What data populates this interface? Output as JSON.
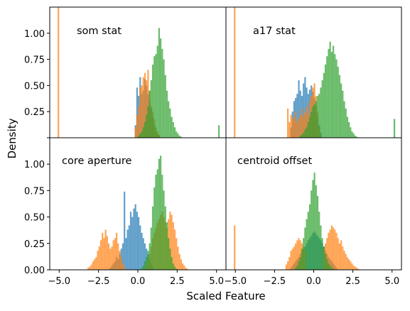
{
  "chart_data": {
    "type": "histogram",
    "xlabel": "Scaled Feature",
    "ylabel": "Density",
    "xlim": [
      -5.6,
      5.6
    ],
    "ylim": [
      0,
      1.25
    ],
    "xticks": [
      -5.0,
      -2.5,
      0.0,
      2.5,
      5.0
    ],
    "xtick_labels": [
      "−5.0",
      "−2.5",
      "0.0",
      "2.5",
      "5.0"
    ],
    "yticks": [
      0.0,
      0.25,
      0.5,
      0.75,
      1.0
    ],
    "ytick_labels": [
      "0.00",
      "0.25",
      "0.50",
      "0.75",
      "1.00"
    ],
    "colors": {
      "blue": "#1f77b4",
      "orange": "#ff7f0e",
      "green": "#2ca02c"
    },
    "bar_alpha": 0.7,
    "panels": [
      {
        "title": "som stat",
        "series": [
          {
            "color": "blue",
            "bin_width": 0.1,
            "x": [
              -0.2,
              -0.1,
              0.0,
              0.1,
              0.2,
              0.3,
              0.4,
              0.5,
              0.6,
              0.7,
              0.8,
              0.9,
              1.0,
              1.1,
              1.2,
              1.3
            ],
            "values": [
              0.12,
              0.48,
              0.4,
              0.58,
              0.42,
              0.45,
              0.56,
              0.5,
              0.42,
              0.35,
              0.28,
              0.2,
              0.12,
              0.07,
              0.04,
              0.02
            ]
          },
          {
            "color": "orange",
            "bin_width": 0.1,
            "x": [
              -5.1,
              -0.2,
              -0.1,
              0.0,
              0.1,
              0.2,
              0.3,
              0.4,
              0.5,
              0.6,
              0.7,
              0.8,
              0.9,
              1.0,
              1.1,
              1.2,
              1.3
            ],
            "values": [
              1.25,
              0.1,
              0.22,
              0.3,
              0.48,
              0.5,
              0.58,
              0.62,
              0.55,
              0.65,
              0.45,
              0.3,
              0.25,
              0.18,
              0.1,
              0.06,
              0.03
            ]
          },
          {
            "color": "green",
            "bin_width": 0.1,
            "x": [
              0.0,
              0.1,
              0.2,
              0.3,
              0.4,
              0.5,
              0.6,
              0.7,
              0.8,
              0.9,
              1.0,
              1.1,
              1.2,
              1.3,
              1.4,
              1.5,
              1.6,
              1.7,
              1.8,
              1.9,
              2.0,
              2.1,
              2.2,
              2.3,
              2.4,
              2.5,
              2.6,
              2.7,
              5.1
            ],
            "values": [
              0.02,
              0.04,
              0.06,
              0.1,
              0.15,
              0.22,
              0.3,
              0.45,
              0.55,
              0.7,
              0.78,
              0.8,
              0.88,
              1.05,
              0.95,
              0.85,
              0.75,
              0.6,
              0.45,
              0.35,
              0.28,
              0.2,
              0.15,
              0.1,
              0.06,
              0.04,
              0.02,
              0.01,
              0.12
            ]
          }
        ]
      },
      {
        "title": "a17 stat",
        "series": [
          {
            "color": "blue",
            "bin_width": 0.1,
            "x": [
              -1.5,
              -1.4,
              -1.3,
              -1.2,
              -1.1,
              -1.0,
              -0.9,
              -0.8,
              -0.7,
              -0.6,
              -0.5,
              -0.4,
              -0.3,
              -0.2,
              -0.1,
              0.0,
              0.1,
              0.2,
              0.3,
              0.4
            ],
            "values": [
              0.1,
              0.25,
              0.35,
              0.38,
              0.42,
              0.55,
              0.45,
              0.4,
              0.52,
              0.58,
              0.48,
              0.42,
              0.46,
              0.5,
              0.44,
              0.38,
              0.3,
              0.2,
              0.12,
              0.05
            ]
          },
          {
            "color": "orange",
            "bin_width": 0.1,
            "x": [
              -5.1,
              -1.7,
              -1.6,
              -1.5,
              -1.4,
              -1.3,
              -1.2,
              -1.1,
              -1.0,
              -0.9,
              -0.8,
              -0.7,
              -0.6,
              -0.5,
              -0.4,
              -0.3,
              -0.2,
              -0.1,
              0.0,
              0.1,
              0.2,
              0.3
            ],
            "values": [
              1.25,
              0.28,
              0.15,
              0.22,
              0.18,
              0.2,
              0.25,
              0.15,
              0.18,
              0.22,
              0.28,
              0.2,
              0.25,
              0.3,
              0.22,
              0.35,
              0.4,
              0.48,
              0.52,
              0.4,
              0.25,
              0.1
            ]
          },
          {
            "color": "green",
            "bin_width": 0.1,
            "x": [
              -0.9,
              -0.8,
              -0.7,
              -0.6,
              -0.5,
              -0.4,
              -0.3,
              -0.2,
              -0.1,
              0.0,
              0.1,
              0.2,
              0.3,
              0.4,
              0.5,
              0.6,
              0.7,
              0.8,
              0.9,
              1.0,
              1.1,
              1.2,
              1.3,
              1.4,
              1.5,
              1.6,
              1.7,
              1.8,
              1.9,
              2.0,
              2.1,
              2.2,
              2.3,
              2.4,
              2.5,
              2.6,
              2.7,
              5.1
            ],
            "values": [
              0.02,
              0.03,
              0.05,
              0.08,
              0.1,
              0.15,
              0.2,
              0.25,
              0.3,
              0.32,
              0.35,
              0.4,
              0.42,
              0.48,
              0.55,
              0.62,
              0.7,
              0.78,
              0.85,
              0.92,
              0.82,
              0.88,
              0.8,
              0.75,
              0.68,
              0.6,
              0.52,
              0.45,
              0.35,
              0.28,
              0.2,
              0.15,
              0.1,
              0.06,
              0.04,
              0.02,
              0.01,
              0.18
            ]
          }
        ]
      },
      {
        "title": "core aperture",
        "series": [
          {
            "color": "blue",
            "bin_width": 0.1,
            "x": [
              -1.8,
              -1.7,
              -1.6,
              -1.5,
              -1.4,
              -1.3,
              -1.2,
              -1.1,
              -1.0,
              -0.9,
              -0.8,
              -0.7,
              -0.6,
              -0.5,
              -0.4,
              -0.3,
              -0.2,
              -0.1,
              0.0,
              0.1,
              0.2,
              0.3,
              0.4,
              0.5,
              0.6,
              0.7,
              0.8,
              0.9
            ],
            "values": [
              0.02,
              0.04,
              0.06,
              0.08,
              0.12,
              0.1,
              0.15,
              0.2,
              0.25,
              0.74,
              0.3,
              0.38,
              0.42,
              0.55,
              0.5,
              0.58,
              0.62,
              0.55,
              0.5,
              0.42,
              0.35,
              0.3,
              0.25,
              0.2,
              0.15,
              0.1,
              0.06,
              0.03
            ]
          },
          {
            "color": "orange",
            "bin_width": 0.1,
            "x": [
              -3.2,
              -3.1,
              -3.0,
              -2.9,
              -2.8,
              -2.7,
              -2.6,
              -2.5,
              -2.4,
              -2.3,
              -2.2,
              -2.1,
              -2.0,
              -1.9,
              -1.8,
              -1.7,
              -1.6,
              -1.5,
              -1.4,
              -1.3,
              -1.2,
              -1.1,
              -1.0,
              -0.9,
              0.5,
              0.6,
              0.7,
              0.8,
              0.9,
              1.0,
              1.1,
              1.2,
              1.3,
              1.4,
              1.5,
              1.6,
              1.7,
              1.8,
              1.9,
              2.0,
              2.1,
              2.2,
              2.3,
              2.4,
              2.5,
              2.6,
              2.7,
              2.8,
              2.9,
              3.0,
              3.1
            ],
            "values": [
              0.02,
              0.03,
              0.05,
              0.08,
              0.1,
              0.12,
              0.18,
              0.22,
              0.28,
              0.35,
              0.3,
              0.38,
              0.32,
              0.25,
              0.2,
              0.22,
              0.28,
              0.3,
              0.35,
              0.25,
              0.18,
              0.12,
              0.06,
              0.03,
              0.05,
              0.1,
              0.15,
              0.22,
              0.3,
              0.35,
              0.4,
              0.45,
              0.48,
              0.52,
              0.55,
              0.5,
              0.45,
              0.4,
              0.48,
              0.55,
              0.52,
              0.45,
              0.38,
              0.3,
              0.22,
              0.15,
              0.1,
              0.06,
              0.04,
              0.02,
              0.01
            ]
          },
          {
            "color": "green",
            "bin_width": 0.1,
            "x": [
              0.2,
              0.3,
              0.4,
              0.5,
              0.6,
              0.7,
              0.8,
              0.9,
              1.0,
              1.1,
              1.2,
              1.3,
              1.4,
              1.5,
              1.6,
              1.7,
              1.8,
              1.9,
              2.0,
              2.1,
              2.2,
              2.3,
              2.4
            ],
            "values": [
              0.02,
              0.04,
              0.08,
              0.12,
              0.18,
              0.25,
              0.4,
              0.6,
              0.78,
              0.9,
              0.95,
              1.05,
              1.08,
              0.9,
              0.75,
              0.6,
              0.45,
              0.3,
              0.2,
              0.12,
              0.06,
              0.03,
              0.01
            ]
          }
        ]
      },
      {
        "title": "centroid offset",
        "series": [
          {
            "color": "blue",
            "bin_width": 0.1,
            "x": [
              -1.5,
              -1.4,
              -1.3,
              -1.2,
              -1.1,
              -1.0,
              -0.9,
              -0.8,
              -0.7,
              -0.6,
              -0.5,
              -0.4,
              -0.3,
              -0.2,
              -0.1,
              0.0,
              0.1,
              0.2,
              0.3,
              0.4,
              0.5,
              0.6,
              0.7,
              0.8,
              0.9,
              1.0,
              1.1,
              1.2,
              1.3,
              1.4
            ],
            "values": [
              0.02,
              0.04,
              0.06,
              0.08,
              0.1,
              0.12,
              0.15,
              0.18,
              0.2,
              0.22,
              0.25,
              0.28,
              0.3,
              0.32,
              0.35,
              0.36,
              0.34,
              0.32,
              0.3,
              0.28,
              0.25,
              0.22,
              0.18,
              0.15,
              0.12,
              0.1,
              0.08,
              0.06,
              0.04,
              0.02
            ]
          },
          {
            "color": "orange",
            "bin_width": 0.1,
            "x": [
              -5.1,
              -1.8,
              -1.7,
              -1.6,
              -1.5,
              -1.4,
              -1.3,
              -1.2,
              -1.1,
              -1.0,
              -0.9,
              -0.8,
              -0.7,
              -0.6,
              0.6,
              0.7,
              0.8,
              0.9,
              1.0,
              1.1,
              1.2,
              1.3,
              1.4,
              1.5,
              1.6,
              1.7,
              1.8,
              1.9,
              2.0,
              2.1,
              2.2,
              2.3,
              2.4,
              2.5,
              2.6,
              2.7,
              2.8
            ],
            "values": [
              0.42,
              0.05,
              0.08,
              0.12,
              0.18,
              0.2,
              0.22,
              0.25,
              0.28,
              0.3,
              0.28,
              0.25,
              0.22,
              0.18,
              0.2,
              0.25,
              0.3,
              0.35,
              0.38,
              0.42,
              0.4,
              0.38,
              0.35,
              0.3,
              0.25,
              0.28,
              0.22,
              0.18,
              0.15,
              0.12,
              0.1,
              0.08,
              0.06,
              0.04,
              0.03,
              0.02,
              0.01
            ]
          },
          {
            "color": "green",
            "bin_width": 0.1,
            "x": [
              -1.2,
              -1.1,
              -1.0,
              -0.9,
              -0.8,
              -0.7,
              -0.6,
              -0.5,
              -0.4,
              -0.3,
              -0.2,
              -0.1,
              0.0,
              0.1,
              0.2,
              0.3,
              0.4,
              0.5,
              0.6,
              0.7,
              0.8,
              0.9,
              1.0,
              1.1,
              1.2
            ],
            "values": [
              0.02,
              0.04,
              0.08,
              0.12,
              0.2,
              0.3,
              0.4,
              0.48,
              0.55,
              0.62,
              0.75,
              0.85,
              0.92,
              0.8,
              0.7,
              0.55,
              0.42,
              0.3,
              0.22,
              0.15,
              0.1,
              0.06,
              0.04,
              0.02,
              0.01
            ]
          }
        ]
      }
    ]
  }
}
